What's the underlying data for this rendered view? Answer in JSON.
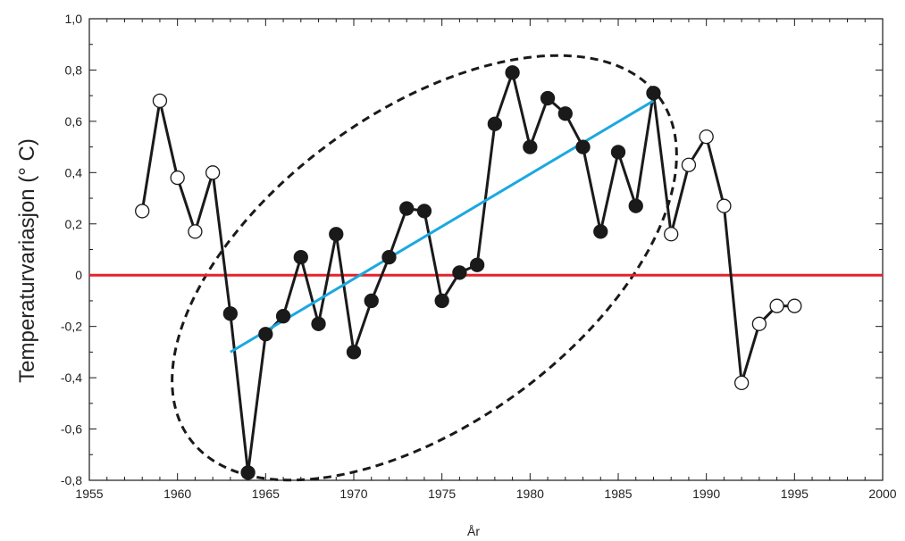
{
  "chart_data": {
    "type": "line",
    "xlabel": "År",
    "ylabel": "Temperaturvariasjon (° C)",
    "xlim": [
      1955,
      2000
    ],
    "ylim": [
      -0.8,
      1.0
    ],
    "x_ticks": [
      1955,
      1960,
      1965,
      1970,
      1975,
      1980,
      1985,
      1990,
      1995,
      2000
    ],
    "x_tick_labels": [
      "1955",
      "1960",
      "1965",
      "1970",
      "1975",
      "1980",
      "1985",
      "1990",
      "1995",
      "2000"
    ],
    "y_ticks": [
      -0.8,
      -0.6,
      -0.4,
      -0.2,
      0,
      0.2,
      0.4,
      0.6,
      0.8,
      1.0
    ],
    "y_tick_labels": [
      "-0,8",
      "-0,6",
      "-0,4",
      "-0,2",
      "0",
      "0,2",
      "0,4",
      "0,6",
      "0,8",
      "1,0"
    ],
    "grid": false,
    "series": [
      {
        "x": [
          1958,
          1959,
          1960,
          1961,
          1962,
          1963,
          1964,
          1965,
          1966,
          1967,
          1968,
          1969,
          1970,
          1971,
          1972,
          1973,
          1974,
          1975,
          1976,
          1977,
          1978,
          1979,
          1980,
          1981,
          1982,
          1983,
          1984,
          1985,
          1986,
          1987,
          1988,
          1989,
          1990,
          1991,
          1992,
          1993,
          1994,
          1995
        ],
        "y": [
          0.25,
          0.68,
          0.38,
          0.17,
          0.4,
          -0.15,
          -0.77,
          -0.23,
          -0.16,
          0.07,
          -0.19,
          0.16,
          -0.3,
          -0.1,
          0.07,
          0.26,
          0.25,
          -0.1,
          0.01,
          0.04,
          0.59,
          0.79,
          0.5,
          0.69,
          0.63,
          0.5,
          0.17,
          0.48,
          0.27,
          0.71,
          0.16,
          0.43,
          0.54,
          0.27,
          -0.42,
          -0.19,
          -0.12,
          -0.12
        ],
        "filled": [
          false,
          false,
          false,
          false,
          false,
          true,
          true,
          true,
          true,
          true,
          true,
          true,
          true,
          true,
          true,
          true,
          true,
          true,
          true,
          true,
          true,
          true,
          true,
          true,
          true,
          true,
          true,
          true,
          true,
          true,
          false,
          false,
          false,
          false,
          false,
          false,
          false,
          false
        ],
        "color": "#1a1a1a"
      }
    ],
    "trend_line": {
      "x": [
        1963,
        1987
      ],
      "y": [
        -0.3,
        0.68
      ],
      "color": "#1ba8e0"
    },
    "reference_line": {
      "y": 0,
      "color": "#e3242b"
    },
    "highlight_ellipse": {
      "style": "dashed",
      "color": "#1a1a1a"
    }
  }
}
